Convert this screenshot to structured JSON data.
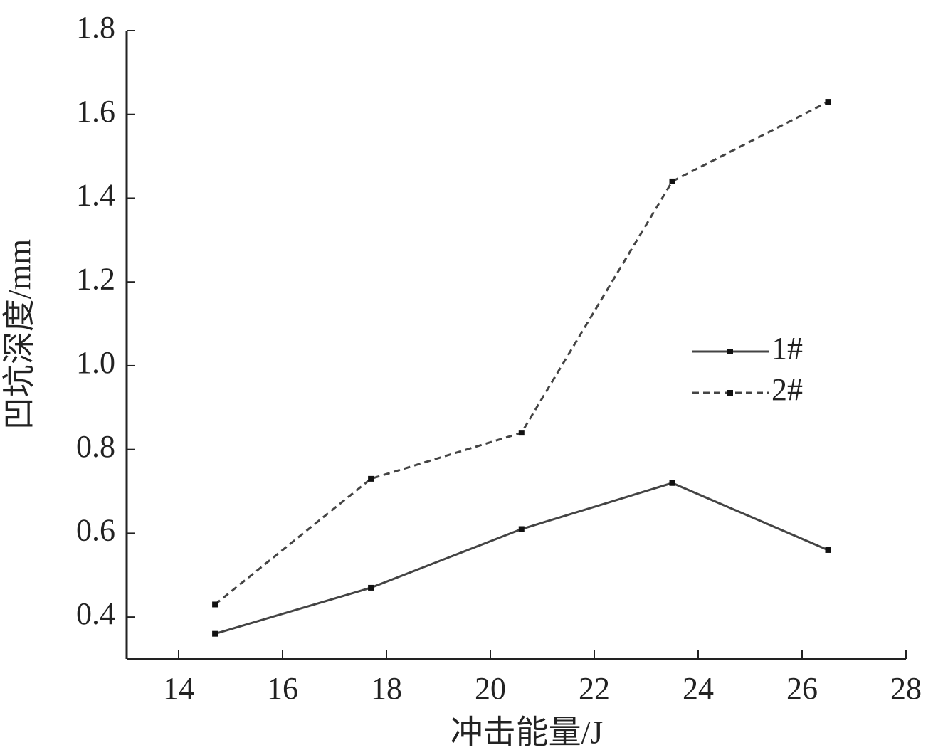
{
  "chart_data": {
    "type": "line",
    "x_label": "冲击能量/J",
    "y_label": "凹坑深度/mm",
    "x": [
      14.7,
      17.7,
      20.6,
      23.5,
      26.5
    ],
    "series": [
      {
        "name": "1#",
        "color": "#444444",
        "dashed": false,
        "values": [
          0.36,
          0.47,
          0.61,
          0.72,
          0.56
        ]
      },
      {
        "name": "2#",
        "color": "#444444",
        "dashed": true,
        "values": [
          0.43,
          0.73,
          0.84,
          1.44,
          1.63
        ]
      }
    ],
    "xlim": [
      13,
      28
    ],
    "xticks": [
      14,
      16,
      18,
      20,
      22,
      24,
      26,
      28
    ],
    "ylim": [
      0.3,
      1.8
    ],
    "yticks": [
      {
        "value": 0.4,
        "label": "0.4"
      },
      {
        "value": 0.6,
        "label": "0.6"
      },
      {
        "value": 0.8,
        "label": "0.8"
      },
      {
        "value": 1.0,
        "label": "1.0"
      },
      {
        "value": 1.2,
        "label": "1.2"
      },
      {
        "value": 1.4,
        "label": "1.4"
      },
      {
        "value": 1.6,
        "label": "1.6"
      },
      {
        "value": 1.8,
        "label": "1.8"
      }
    ],
    "grid": false
  }
}
